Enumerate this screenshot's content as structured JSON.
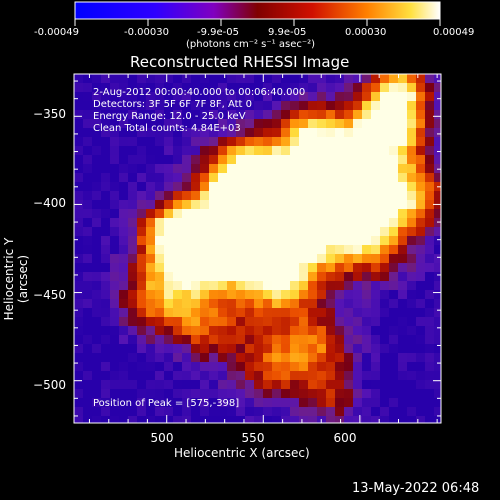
{
  "colorbar": {
    "ticks": [
      "-0.00049",
      "-0.00030",
      "-9.9e-05",
      "9.9e-05",
      "0.00030",
      "0.00049"
    ],
    "units": "(photons cm⁻² s⁻¹ asec⁻²)"
  },
  "chart_data": {
    "type": "heatmap",
    "title": "Reconstructed RHESSI Image",
    "xlabel": "Heliocentric X (arcsec)",
    "ylabel": "Heliocentric Y (arcsec)",
    "xlim": [
      452,
      642
    ],
    "ylim": [
      -524,
      -326
    ],
    "x_ticks": [
      500,
      550,
      600
    ],
    "y_ticks": [
      -350,
      -400,
      -450,
      -500
    ],
    "y_tick_labels": [
      "−350",
      "−400",
      "−450",
      "−500"
    ],
    "colorbar_range": [
      -0.00049,
      0.00049
    ],
    "colormap": "blue-purple-red-orange-yellow-white",
    "peak": [
      575,
      -398
    ],
    "info": {
      "line1": "2-Aug-2012 00:00:40.000 to 00:06:40.000",
      "line2": "Detectors: 3F 5F 6F 7F 8F, Att 0",
      "line3": "Energy Range: 12.0 - 25.0 keV",
      "line4": "Clean    Total counts: 4.84E+03"
    },
    "peak_label": "Position of Peak = [575,-398]"
  },
  "timestamp": "13-May-2022 06:48"
}
